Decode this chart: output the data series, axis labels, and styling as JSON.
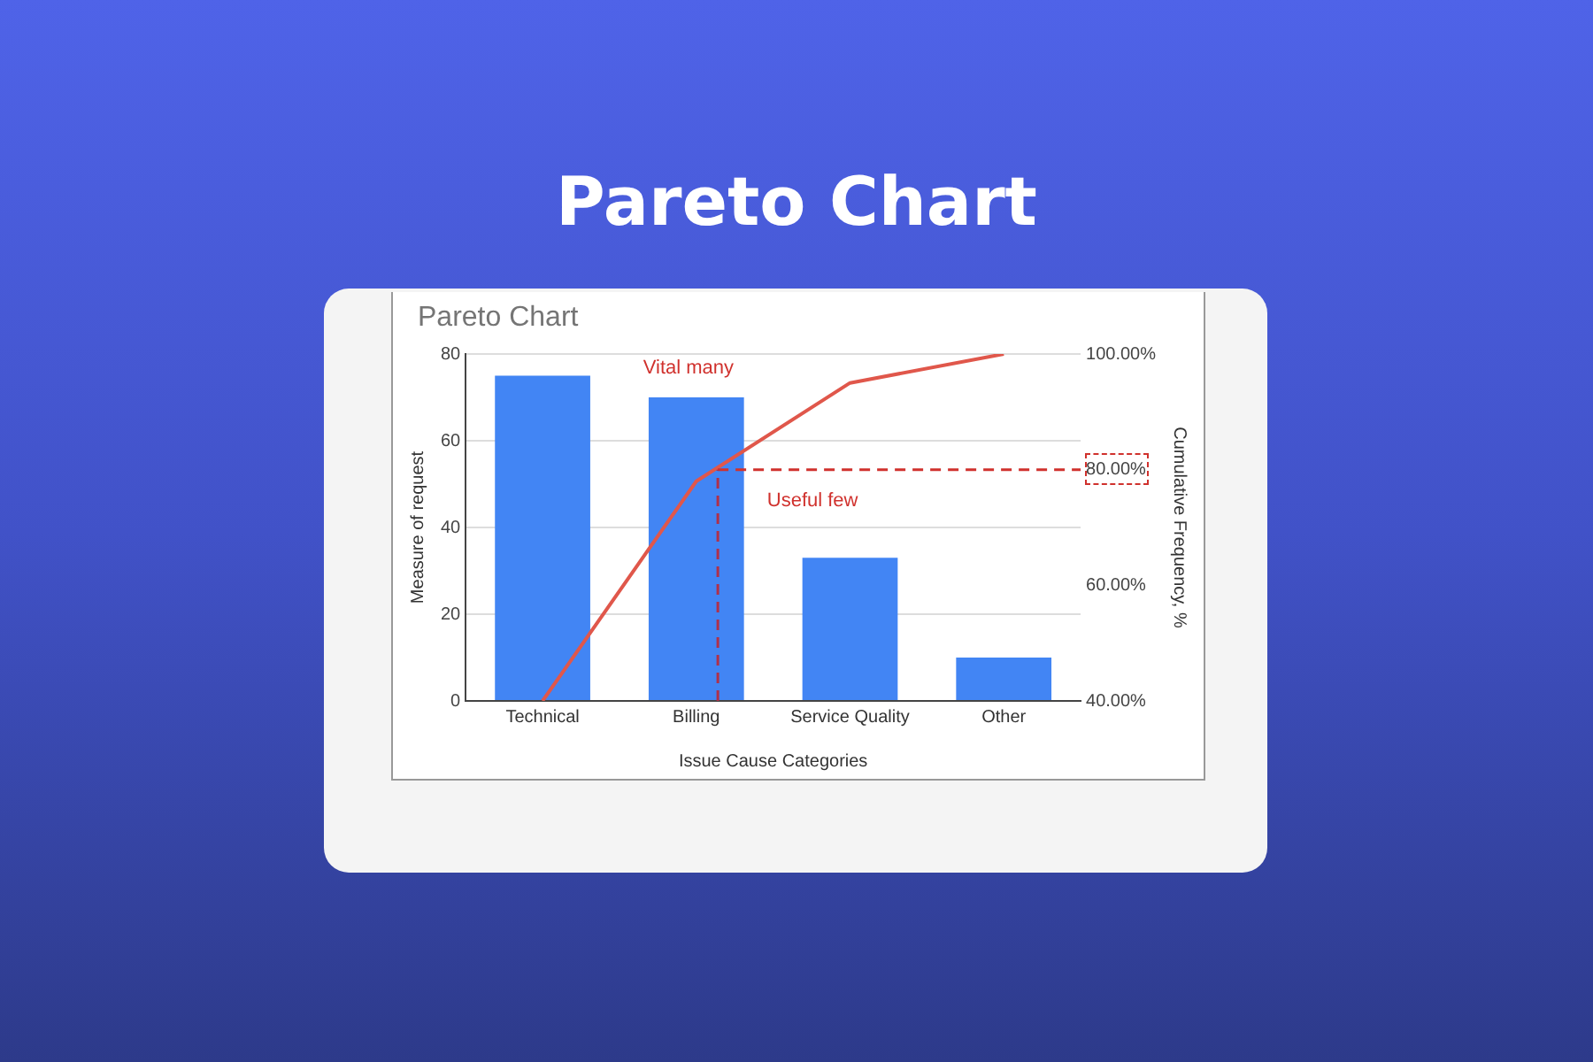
{
  "chart_data": {
    "type": "bar",
    "title": "Pareto Chart",
    "subtitle": "Pareto Chart",
    "xlabel": "Issue Cause Categories",
    "ylabel": "Measure of request",
    "y2label": "Cumulative Frequency, %",
    "categories": [
      "Technical",
      "Billing",
      "Service Quality",
      "Other"
    ],
    "series": [
      {
        "color": "#4285f4",
        "values": [
          75,
          70,
          33,
          10
        ]
      },
      {
        "type": "line",
        "axis": "y2",
        "color": "#e0574b",
        "values": [
          40,
          78,
          95,
          100
        ],
        "marker": "none"
      }
    ],
    "ylim": [
      0,
      80
    ],
    "yticks": [
      0,
      20,
      40,
      60,
      80
    ],
    "y2lim": [
      40,
      100
    ],
    "y2ticks": [
      {
        "value": 40,
        "label": "40.00%"
      },
      {
        "value": 60,
        "label": "60.00%"
      },
      {
        "value": 80,
        "label": "80.00%"
      },
      {
        "value": 100,
        "label": "100.00%"
      }
    ],
    "ref_lines": [
      {
        "axis": "y2",
        "value": 80,
        "color": "#d0312d",
        "line_style": "dashed"
      },
      {
        "axis": "x",
        "value": "Billing",
        "color": "#b0304a",
        "line_style": "dashed"
      }
    ],
    "annotations": [
      "Vital many",
      "Useful few"
    ],
    "grid": "y",
    "legend": false
  }
}
